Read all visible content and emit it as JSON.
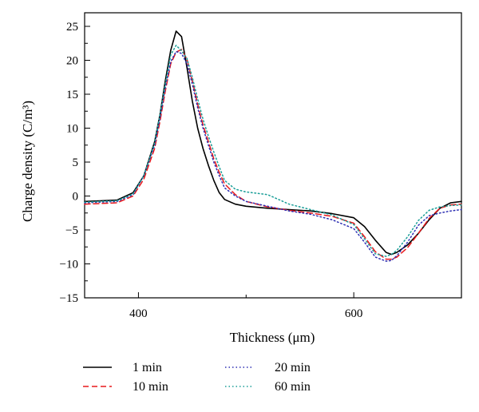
{
  "chart_data": {
    "type": "line",
    "xlabel": "Thickness (μm)",
    "ylabel": "Charge density (C/m³)",
    "xlim": [
      350,
      700
    ],
    "ylim": [
      -15,
      27
    ],
    "x_ticks": [
      400,
      600
    ],
    "y_ticks": [
      -15,
      -10,
      -5,
      0,
      5,
      10,
      15,
      20,
      25
    ],
    "grid": false,
    "legend_position": "bottom",
    "series": [
      {
        "name": "1 min",
        "color": "#000000",
        "style": "solid",
        "x": [
          350,
          380,
          395,
          405,
          415,
          420,
          425,
          430,
          435,
          440,
          445,
          450,
          455,
          460,
          465,
          470,
          475,
          480,
          490,
          500,
          520,
          540,
          560,
          580,
          600,
          610,
          620,
          630,
          635,
          640,
          650,
          660,
          670,
          680,
          690,
          700
        ],
        "y": [
          -0.8,
          -0.6,
          0.5,
          3,
          8,
          12,
          17,
          21.5,
          24.3,
          23.5,
          19,
          14,
          10,
          7,
          4.5,
          2.3,
          0.5,
          -0.5,
          -1.2,
          -1.5,
          -1.8,
          -2.0,
          -2.2,
          -2.6,
          -3.2,
          -4.5,
          -6.5,
          -8.3,
          -8.6,
          -8.3,
          -7.2,
          -5.5,
          -3.5,
          -1.8,
          -1.0,
          -0.8
        ]
      },
      {
        "name": "10 min",
        "color": "#e8191c",
        "style": "dashed",
        "x": [
          350,
          380,
          395,
          405,
          415,
          420,
          425,
          430,
          435,
          440,
          445,
          450,
          455,
          460,
          465,
          470,
          475,
          480,
          490,
          500,
          520,
          540,
          560,
          580,
          600,
          610,
          620,
          630,
          635,
          640,
          650,
          660,
          670,
          680,
          690,
          700
        ],
        "y": [
          -1.2,
          -1.0,
          0.0,
          2.5,
          7,
          11,
          15.5,
          19.5,
          21.2,
          21.6,
          20.2,
          17,
          13.5,
          10.5,
          8,
          5.5,
          3.5,
          1.8,
          0.2,
          -0.8,
          -1.6,
          -2.1,
          -2.5,
          -3.0,
          -4.0,
          -6.0,
          -8.2,
          -9.3,
          -9.3,
          -9.0,
          -7.6,
          -5.5,
          -3.3,
          -1.8,
          -1.3,
          -1.2
        ]
      },
      {
        "name": "20 min",
        "color": "#2d2fb3",
        "style": "dotted",
        "x": [
          350,
          380,
          395,
          405,
          415,
          420,
          425,
          430,
          435,
          440,
          445,
          450,
          455,
          460,
          465,
          470,
          475,
          480,
          490,
          500,
          520,
          540,
          560,
          580,
          600,
          610,
          620,
          630,
          635,
          640,
          650,
          660,
          670,
          680,
          690,
          700
        ],
        "y": [
          -1.0,
          -0.8,
          0.2,
          3,
          7.5,
          11.5,
          16,
          19.8,
          21.3,
          21.0,
          19.5,
          16.5,
          13,
          10,
          7.5,
          5,
          3,
          1.2,
          0.0,
          -0.8,
          -1.5,
          -2.2,
          -2.7,
          -3.5,
          -4.8,
          -6.8,
          -9.0,
          -9.6,
          -9.5,
          -8.8,
          -6.8,
          -4.3,
          -2.9,
          -2.5,
          -2.2,
          -2.0
        ]
      },
      {
        "name": "60 min",
        "color": "#1a9e98",
        "style": "dotted",
        "x": [
          350,
          380,
          395,
          405,
          415,
          420,
          425,
          430,
          435,
          440,
          445,
          450,
          455,
          460,
          465,
          470,
          475,
          480,
          490,
          500,
          520,
          540,
          560,
          580,
          600,
          610,
          620,
          630,
          635,
          640,
          650,
          660,
          670,
          680,
          690,
          700
        ],
        "y": [
          -0.9,
          -0.7,
          0.3,
          3,
          7.8,
          12,
          16.5,
          20.8,
          22.2,
          21.4,
          20.3,
          17.5,
          14.3,
          11.3,
          8.8,
          6.5,
          4.3,
          2.3,
          1.0,
          0.6,
          0.2,
          -1.2,
          -2.0,
          -2.8,
          -4.2,
          -6.3,
          -8.5,
          -8.9,
          -8.6,
          -8.0,
          -6.0,
          -3.6,
          -2.1,
          -1.6,
          -1.4,
          -1.3
        ]
      }
    ]
  }
}
